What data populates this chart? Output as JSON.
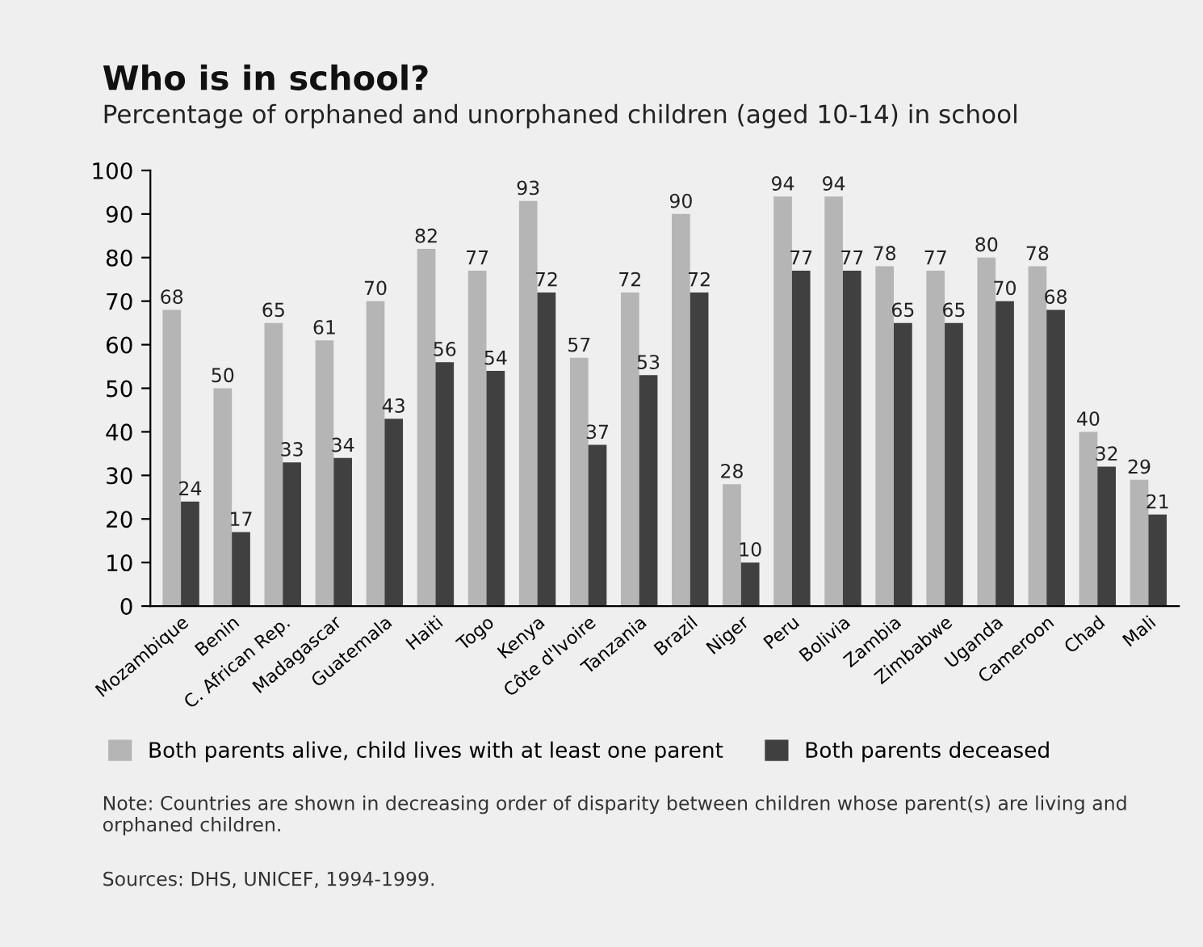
{
  "chart_data": {
    "type": "bar",
    "title": "Who is in school?",
    "subtitle": "Percentage of orphaned and unorphaned children (aged 10-14) in school",
    "categories": [
      "Mozambique",
      "Benin",
      "C. African Rep.",
      "Madagascar",
      "Guatemala",
      "Haiti",
      "Togo",
      "Kenya",
      "Côte d'Ivoire",
      "Tanzania",
      "Brazil",
      "Niger",
      "Peru",
      "Bolivia",
      "Zambia",
      "Zimbabwe",
      "Uganda",
      "Cameroon",
      "Chad",
      "Mali"
    ],
    "series": [
      {
        "name": "Both parents alive, child lives with at least one parent",
        "color": "#b5b5b5",
        "values": [
          68,
          50,
          65,
          61,
          70,
          82,
          77,
          93,
          57,
          72,
          90,
          28,
          94,
          94,
          78,
          77,
          80,
          78,
          40,
          29
        ]
      },
      {
        "name": "Both parents deceased",
        "color": "#404040",
        "values": [
          24,
          17,
          33,
          34,
          43,
          56,
          54,
          72,
          37,
          53,
          72,
          10,
          77,
          77,
          65,
          65,
          70,
          68,
          32,
          21
        ]
      }
    ],
    "ylim": [
      0,
      100
    ],
    "yticks": [
      0,
      10,
      20,
      30,
      40,
      50,
      60,
      70,
      80,
      90,
      100
    ],
    "grid": false,
    "legend": "bottom",
    "data_labels": true,
    "annotations": [
      "Note: Countries are shown in decreasing order of disparity between children whose parent(s) are living and orphaned children.",
      "Sources: DHS, UNICEF, 1994-1999."
    ]
  }
}
